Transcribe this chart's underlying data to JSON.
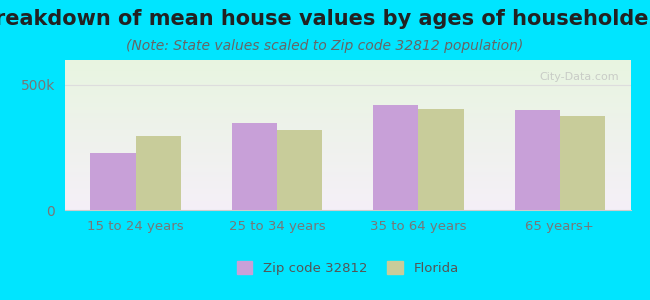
{
  "title": "Breakdown of mean house values by ages of householders",
  "subtitle": "(Note: State values scaled to Zip code 32812 population)",
  "categories": [
    "15 to 24 years",
    "25 to 34 years",
    "35 to 64 years",
    "65 years+"
  ],
  "zip_values": [
    230000,
    350000,
    420000,
    400000
  ],
  "florida_values": [
    295000,
    320000,
    405000,
    375000
  ],
  "zip_color": "#c8a0d8",
  "florida_color": "#c8cc9a",
  "ylim": [
    0,
    600000
  ],
  "yticks": [
    0,
    500000
  ],
  "ytick_labels": [
    "0",
    "500k"
  ],
  "legend_zip": "Zip code 32812",
  "legend_florida": "Florida",
  "bg_outer": "#00e5ff",
  "bg_plot_top": "#e8f5e0",
  "bg_plot_bottom": "#f5f0f8",
  "title_fontsize": 15,
  "subtitle_fontsize": 10,
  "bar_width": 0.32
}
